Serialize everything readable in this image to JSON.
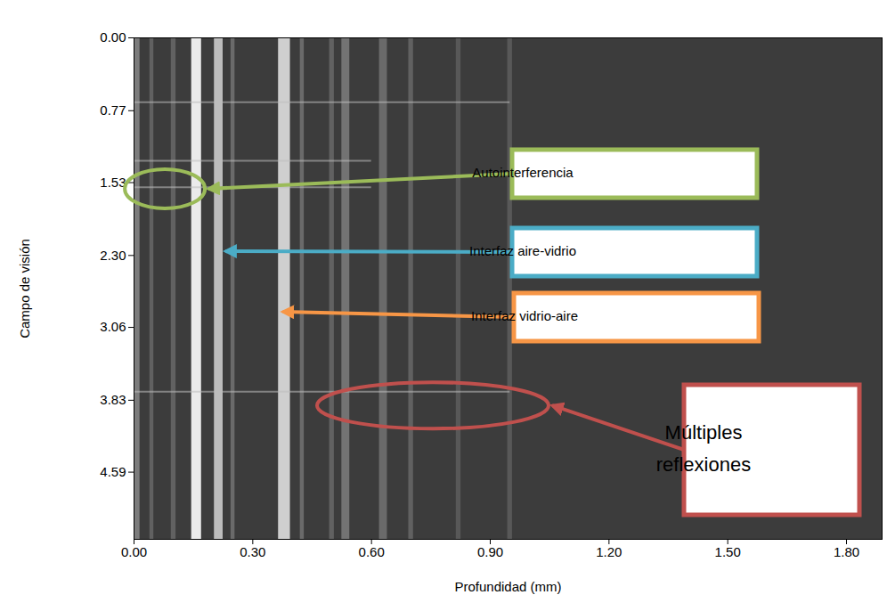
{
  "chart_data": {
    "type": "bands",
    "x_label": "Profundidad (mm)",
    "y_label": "Campo de visión",
    "color": "#3c3c3c",
    "xlim": [
      0,
      1.89
    ],
    "ylim": [
      0,
      5.3
    ],
    "xticks": [
      {
        "value": 0,
        "label": "0.00"
      },
      {
        "value": 0.3,
        "label": "0.30"
      },
      {
        "value": 0.6,
        "label": "0.60"
      },
      {
        "value": 0.9,
        "label": "0.90"
      },
      {
        "value": 1.2,
        "label": "1.20"
      },
      {
        "value": 1.5,
        "label": "1.50"
      },
      {
        "value": 1.8,
        "label": "1.80"
      }
    ],
    "yticks": [
      {
        "value": 0,
        "label": "0.00"
      },
      0.77,
      1.53,
      {
        "value": 2.3,
        "label": "2.30"
      },
      3.06,
      3.83,
      4.59
    ],
    "bands": [
      {
        "x": 0.005,
        "width": 0.02,
        "intensity": 0.35
      },
      {
        "x": 0.045,
        "width": 0.01,
        "intensity": 0.2
      },
      {
        "x": 0.1,
        "width": 0.012,
        "intensity": 0.2
      },
      {
        "x": 0.158,
        "width": 0.025,
        "intensity": 0.95
      },
      {
        "x": 0.214,
        "width": 0.022,
        "intensity": 0.7
      },
      {
        "x": 0.25,
        "width": 0.01,
        "intensity": 0.25
      },
      {
        "x": 0.38,
        "width": 0.03,
        "intensity": 0.8
      },
      {
        "x": 0.425,
        "width": 0.01,
        "intensity": 0.25
      },
      {
        "x": 0.5,
        "width": 0.012,
        "intensity": 0.2
      },
      {
        "x": 0.535,
        "width": 0.02,
        "intensity": 0.3
      },
      {
        "x": 0.63,
        "width": 0.02,
        "intensity": 0.25
      },
      {
        "x": 0.7,
        "width": 0.012,
        "intensity": 0.2
      },
      {
        "x": 0.82,
        "width": 0.012,
        "intensity": 0.15
      },
      {
        "x": 0.95,
        "width": 0.012,
        "intensity": 0.15
      }
    ],
    "horizontal_lines": [
      {
        "y": 0.68,
        "x1": 0,
        "x2": 0.95
      },
      {
        "y": 1.3,
        "x1": 0,
        "x2": 0.6
      },
      {
        "y": 1.58,
        "x1": 0,
        "x2": 0.6
      },
      {
        "y": 3.74,
        "x1": 0,
        "x2": 0.95
      }
    ],
    "annotations": [
      {
        "text": "Autointerferencia",
        "color": "#9bbb59",
        "x": 0.079,
        "y": 1.6
      },
      {
        "text": "Interfaz aire-vidrio",
        "color": "#4bacc6",
        "x": 0.232,
        "y": 2.26
      },
      {
        "text": "Interfaz vidrio-aire",
        "color": "#f79646",
        "x": 0.377,
        "y": 2.9
      },
      {
        "text": "Múltiples reflexiones",
        "color": "#c0504d",
        "x": 0.756,
        "y": 3.89
      }
    ]
  }
}
